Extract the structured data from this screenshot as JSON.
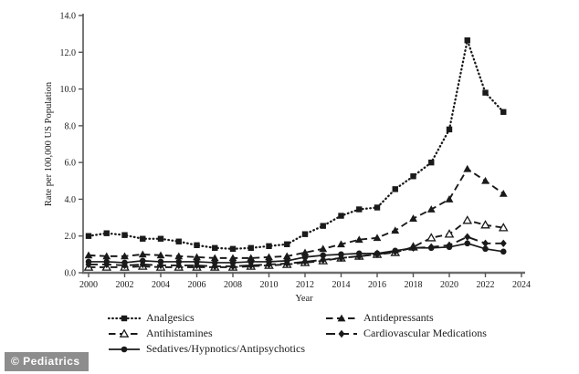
{
  "watermark": {
    "text": "© Pediatrics"
  },
  "colors": {
    "ink": "#1a1a1a",
    "axis": "#6e6e6e",
    "watermark_bg": "#8d8d8d",
    "watermark_fg": "#ffffff"
  },
  "chart_data": {
    "type": "line",
    "title": "",
    "xlabel": "Year",
    "ylabel": "Rate per 100,000 US Population",
    "xlim": [
      2000,
      2024
    ],
    "ylim": [
      0,
      14
    ],
    "grid": false,
    "legend_position": "bottom",
    "xticks": [
      2000,
      2002,
      2004,
      2006,
      2008,
      2010,
      2012,
      2014,
      2016,
      2018,
      2020,
      2022,
      2024
    ],
    "xtick_labels": [
      "2000",
      "2002",
      "2004",
      "2006",
      "2008",
      "2010",
      "2012",
      "2014",
      "2016",
      "2018",
      "2020",
      "2022",
      "2024"
    ],
    "yticks": [
      0,
      2,
      4,
      6,
      8,
      10,
      12,
      14
    ],
    "ytick_labels": [
      "0.0",
      "2.0",
      "4.0",
      "6.0",
      "8.0",
      "10.0",
      "12.0",
      "14.0"
    ],
    "x": [
      2000,
      2001,
      2002,
      2003,
      2004,
      2005,
      2006,
      2007,
      2008,
      2009,
      2010,
      2011,
      2012,
      2013,
      2014,
      2015,
      2016,
      2017,
      2018,
      2019,
      2020,
      2021,
      2022,
      2023
    ],
    "series": [
      {
        "name": "Analgesics",
        "marker": "square",
        "line": "dotted",
        "values": [
          2.0,
          2.15,
          2.05,
          1.85,
          1.85,
          1.7,
          1.5,
          1.35,
          1.3,
          1.35,
          1.45,
          1.55,
          2.1,
          2.55,
          3.1,
          3.45,
          3.55,
          4.55,
          5.25,
          6.0,
          7.8,
          12.65,
          9.8,
          8.75
        ]
      },
      {
        "name": "Antidepressants",
        "marker": "triangle-filled",
        "line": "dashed",
        "values": [
          0.95,
          0.9,
          0.9,
          1.0,
          0.95,
          0.9,
          0.85,
          0.8,
          0.8,
          0.8,
          0.85,
          0.9,
          1.1,
          1.3,
          1.55,
          1.8,
          1.9,
          2.3,
          2.95,
          3.45,
          4.0,
          5.65,
          5.0,
          4.3
        ]
      },
      {
        "name": "Antihistamines",
        "marker": "triangle-open",
        "line": "dashed",
        "values": [
          0.3,
          0.3,
          0.3,
          0.35,
          0.3,
          0.3,
          0.3,
          0.3,
          0.3,
          0.35,
          0.4,
          0.45,
          0.55,
          0.65,
          0.8,
          0.9,
          1.0,
          1.1,
          1.4,
          1.9,
          2.1,
          2.85,
          2.6,
          2.45
        ]
      },
      {
        "name": "Cardiovascular Medications",
        "marker": "diamond",
        "line": "long-dash",
        "values": [
          0.45,
          0.45,
          0.4,
          0.45,
          0.4,
          0.4,
          0.4,
          0.35,
          0.35,
          0.4,
          0.45,
          0.5,
          0.6,
          0.7,
          0.8,
          0.9,
          1.0,
          1.15,
          1.35,
          1.4,
          1.5,
          1.95,
          1.6,
          1.6
        ]
      },
      {
        "name": "Sedatives/Hypnotics/Antipsychotics",
        "marker": "circle",
        "line": "solid",
        "values": [
          0.6,
          0.6,
          0.55,
          0.65,
          0.6,
          0.6,
          0.6,
          0.55,
          0.55,
          0.6,
          0.6,
          0.65,
          0.85,
          0.95,
          1.0,
          1.05,
          1.05,
          1.2,
          1.35,
          1.35,
          1.4,
          1.6,
          1.3,
          1.15
        ]
      }
    ],
    "legend_columns": [
      [
        0,
        2,
        4
      ],
      [
        1,
        3
      ]
    ]
  }
}
